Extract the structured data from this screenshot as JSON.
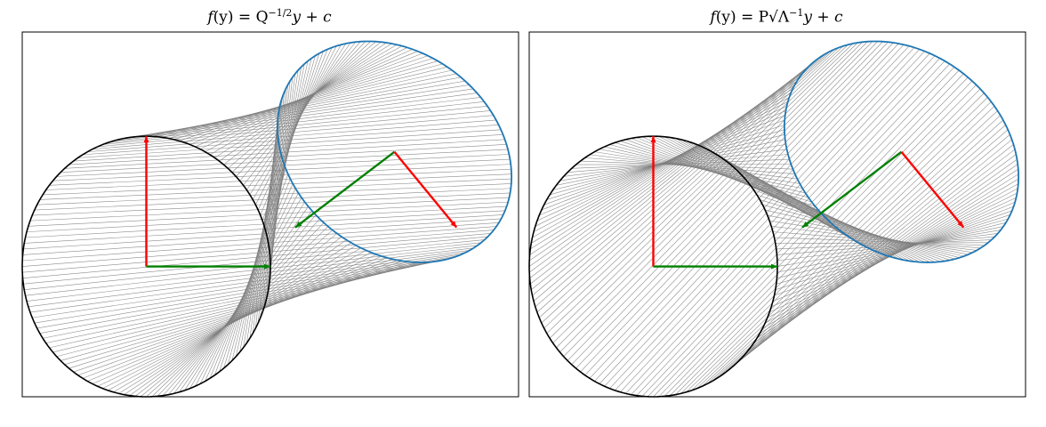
{
  "chart_data": [
    {
      "type": "line",
      "title_parts": {
        "a": "f",
        "b": "(y) = Q",
        "sup": "−1/2",
        "c": "y + c"
      },
      "xlim": [
        -1.0,
        3.0
      ],
      "ylim": [
        -1.0,
        1.8
      ],
      "grid": false,
      "legend": "none",
      "connector_mode": "linear",
      "unit_circle": {
        "center": [
          0,
          0
        ],
        "radius": 1
      },
      "ellipse": {
        "center": [
          2.0,
          0.88
        ],
        "semi_axis_1": [
          -0.8,
          0.6
        ],
        "semi_axis_2": [
          0.5,
          0.6
        ]
      },
      "axes_vectors_circle": [
        {
          "from": [
            0,
            0
          ],
          "to": [
            0,
            1
          ],
          "color": "#ff0000"
        },
        {
          "from": [
            0,
            0
          ],
          "to": [
            1,
            0
          ],
          "color": "#008000"
        }
      ],
      "axes_vectors_ellipse": [
        {
          "from": [
            2.0,
            0.88
          ],
          "to": [
            1.2,
            0.3
          ],
          "color": "#008000"
        },
        {
          "from": [
            2.0,
            0.88
          ],
          "to": [
            2.5,
            0.3
          ],
          "color": "#ff0000"
        }
      ],
      "colors": {
        "circle": "#000000",
        "ellipse": "#1f77b4",
        "connectors": "#808080"
      }
    },
    {
      "type": "line",
      "title_parts": {
        "a": "f",
        "b": "(y) = P√Λ",
        "sup": "−1",
        "c": "y + c"
      },
      "xlim": [
        -1.0,
        3.0
      ],
      "ylim": [
        -1.0,
        1.8
      ],
      "grid": false,
      "legend": "none",
      "connector_mode": "twisted",
      "unit_circle": {
        "center": [
          0,
          0
        ],
        "radius": 1
      },
      "ellipse": {
        "center": [
          2.0,
          0.88
        ],
        "semi_axis_1": [
          -0.8,
          0.6
        ],
        "semi_axis_2": [
          0.5,
          0.6
        ]
      },
      "axes_vectors_circle": [
        {
          "from": [
            0,
            0
          ],
          "to": [
            0,
            1
          ],
          "color": "#ff0000"
        },
        {
          "from": [
            0,
            0
          ],
          "to": [
            1,
            0
          ],
          "color": "#008000"
        }
      ],
      "axes_vectors_ellipse": [
        {
          "from": [
            2.0,
            0.88
          ],
          "to": [
            1.2,
            0.3
          ],
          "color": "#008000"
        },
        {
          "from": [
            2.0,
            0.88
          ],
          "to": [
            2.5,
            0.3
          ],
          "color": "#ff0000"
        }
      ],
      "colors": {
        "circle": "#000000",
        "ellipse": "#1f77b4",
        "connectors": "#808080"
      }
    }
  ]
}
